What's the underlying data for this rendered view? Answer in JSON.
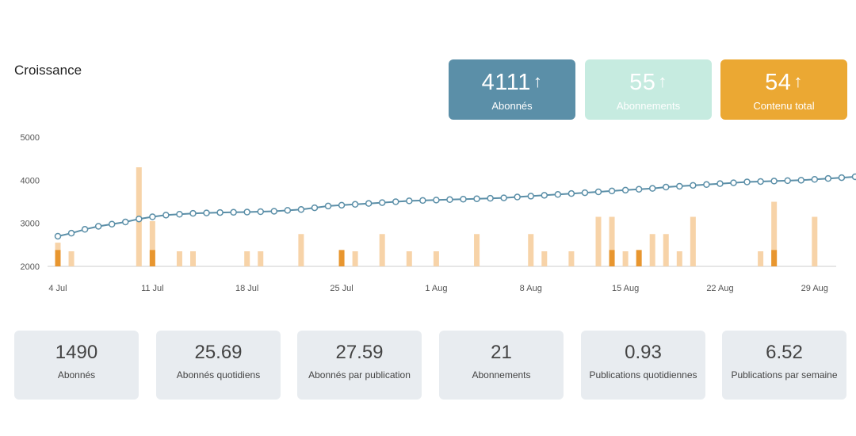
{
  "title": "Croissance",
  "kpis": [
    {
      "value": "4111",
      "arrow": "↑",
      "label": "Abonnés",
      "color": "#5b8fa8"
    },
    {
      "value": "55",
      "arrow": "↑",
      "label": "Abonnements",
      "color": "#c6ebe0"
    },
    {
      "value": "54",
      "arrow": "↑",
      "label": "Contenu total",
      "color": "#eba833"
    }
  ],
  "chart_data": {
    "type": "line",
    "ylim": [
      2000,
      5000
    ],
    "yticks": [
      2000,
      3000,
      4000,
      5000
    ],
    "xticks": [
      "4 Jul",
      "11 Jul",
      "18 Jul",
      "25 Jul",
      "1 Aug",
      "8 Aug",
      "15 Aug",
      "22 Aug",
      "29 Aug"
    ],
    "grid": false,
    "colors": {
      "line": "#5b8fa8",
      "bar_light": "#f7d3a8",
      "bar_dark": "#e8962f"
    },
    "series": [
      {
        "kind": "line",
        "values": [
          2700,
          2770,
          2860,
          2930,
          2980,
          3030,
          3100,
          3150,
          3190,
          3210,
          3230,
          3240,
          3250,
          3255,
          3260,
          3270,
          3280,
          3300,
          3320,
          3360,
          3400,
          3420,
          3440,
          3460,
          3480,
          3500,
          3520,
          3530,
          3540,
          3550,
          3560,
          3570,
          3580,
          3590,
          3610,
          3630,
          3650,
          3670,
          3690,
          3710,
          3730,
          3750,
          3770,
          3790,
          3810,
          3840,
          3860,
          3880,
          3900,
          3920,
          3940,
          3960,
          3970,
          3980,
          3990,
          4000,
          4020,
          4040,
          4060,
          4080,
          4090,
          4100
        ]
      },
      {
        "kind": "bar-light",
        "bars": [
          [
            0,
            2550
          ],
          [
            1,
            2350
          ],
          [
            6,
            4300
          ],
          [
            7,
            3050
          ],
          [
            9,
            2350
          ],
          [
            10,
            2350
          ],
          [
            14,
            2350
          ],
          [
            15,
            2350
          ],
          [
            18,
            2750
          ],
          [
            21,
            2350
          ],
          [
            22,
            2350
          ],
          [
            24,
            2750
          ],
          [
            26,
            2350
          ],
          [
            28,
            2350
          ],
          [
            31,
            2750
          ],
          [
            35,
            2750
          ],
          [
            36,
            2350
          ],
          [
            38,
            2350
          ],
          [
            40,
            3150
          ],
          [
            41,
            3150
          ],
          [
            42,
            2350
          ],
          [
            44,
            2750
          ],
          [
            45,
            2750
          ],
          [
            46,
            2350
          ],
          [
            47,
            3150
          ],
          [
            52,
            2350
          ],
          [
            53,
            3500
          ],
          [
            56,
            3150
          ]
        ]
      },
      {
        "kind": "bar-dark",
        "bars": [
          [
            0,
            2380
          ],
          [
            7,
            2380
          ],
          [
            21,
            2380
          ],
          [
            41,
            2380
          ],
          [
            43,
            2380
          ],
          [
            53,
            2380
          ]
        ]
      }
    ]
  },
  "stats": [
    {
      "value": "1490",
      "label": "Abonnés"
    },
    {
      "value": "25.69",
      "label": "Abonnés quotidiens"
    },
    {
      "value": "27.59",
      "label": "Abonnés par publication"
    },
    {
      "value": "21",
      "label": "Abonnements"
    },
    {
      "value": "0.93",
      "label": "Publications quotidiennes"
    },
    {
      "value": "6.52",
      "label": "Publications par semaine"
    }
  ]
}
